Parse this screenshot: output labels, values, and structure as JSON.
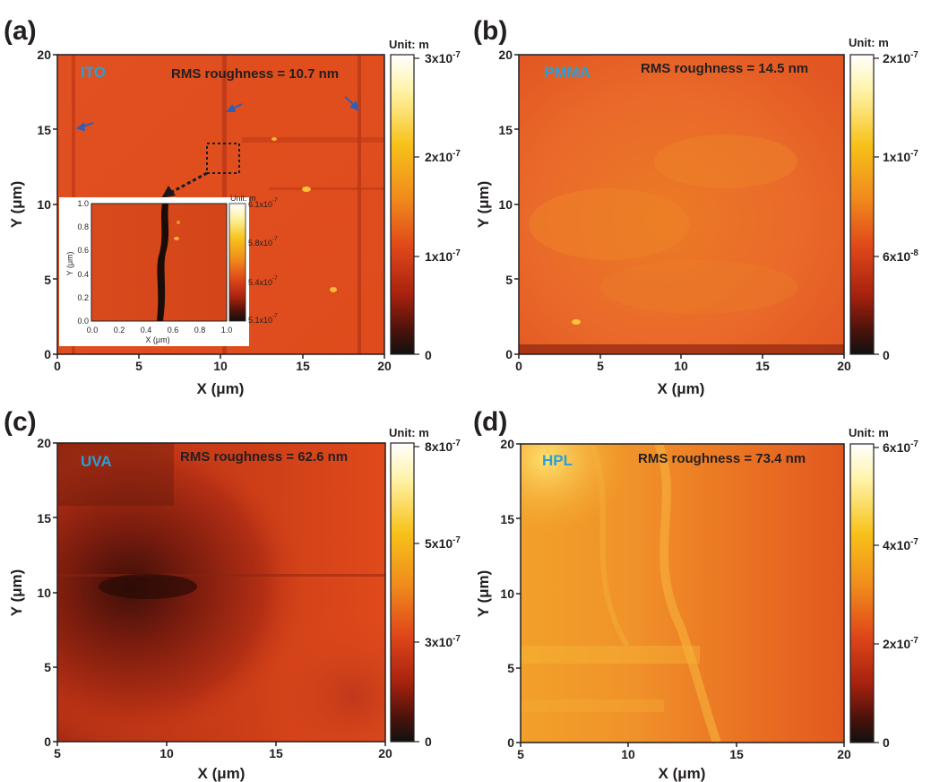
{
  "panels": [
    {
      "id": "a",
      "panel_label": "(a)",
      "sample_label": "ITO",
      "rms_text": "RMS roughness = 10.7 nm",
      "unit_label": "Unit: m",
      "x_axis_label": "X (μm)",
      "y_axis_label": "Y (μm)",
      "x_ticks": [
        "0",
        "5",
        "10",
        "15",
        "20"
      ],
      "y_ticks": [
        "0",
        "5",
        "10",
        "15",
        "20"
      ],
      "colorbar_ticks": [
        "3x10-7",
        "2x10-7",
        "1x10-7",
        "0"
      ],
      "inset": {
        "unit_label": "Unit: m",
        "x_axis_label": "X (μm)",
        "y_axis_label": "Y (μm)",
        "x_ticks": [
          "0.0",
          "0.2",
          "0.4",
          "0.6",
          "0.8",
          "1.0"
        ],
        "y_ticks": [
          "0.0",
          "0.2",
          "0.4",
          "0.6",
          "0.8",
          "1.0"
        ],
        "colorbar_ticks": [
          "6.1x10-7",
          "5.8x10-7",
          "5.4x10-7",
          "5.1x10-7"
        ]
      }
    },
    {
      "id": "b",
      "panel_label": "(b)",
      "sample_label": "PMMA",
      "rms_text": "RMS roughness = 14.5 nm",
      "unit_label": "Unit: m",
      "x_axis_label": "X (μm)",
      "y_axis_label": "Y (μm)",
      "x_ticks": [
        "0",
        "5",
        "10",
        "15",
        "20"
      ],
      "y_ticks": [
        "0",
        "5",
        "10",
        "15",
        "20"
      ],
      "colorbar_ticks": [
        "2x10-7",
        "1x10-7",
        "6x10-8",
        "0"
      ]
    },
    {
      "id": "c",
      "panel_label": "(c)",
      "sample_label": "UVA",
      "rms_text": "RMS roughness = 62.6 nm",
      "unit_label": "Unit: m",
      "x_axis_label": "X (μm)",
      "y_axis_label": "Y (μm)",
      "x_ticks": [
        "5",
        "10",
        "15",
        "20"
      ],
      "y_ticks": [
        "0",
        "5",
        "10",
        "15",
        "20"
      ],
      "colorbar_ticks": [
        "8x10-7",
        "5x10-7",
        "3x10-7",
        "0"
      ]
    },
    {
      "id": "d",
      "panel_label": "(d)",
      "sample_label": "HPL",
      "rms_text": "RMS roughness = 73.4 nm",
      "unit_label": "Unit: m",
      "x_axis_label": "X (μm)",
      "y_axis_label": "Y (μm)",
      "x_ticks": [
        "5",
        "10",
        "15",
        "20"
      ],
      "y_ticks": [
        "0",
        "5",
        "10",
        "15",
        "20"
      ],
      "colorbar_ticks": [
        "6x10-7",
        "4x10-7",
        "2x10-7",
        "0"
      ]
    }
  ],
  "colors": {
    "surface_base": "#e0481a",
    "label_blue": "#2a9fd8",
    "dark": "#1a0a05",
    "axis": "#231f20",
    "colormap": [
      "#ffffff",
      "#fff3a8",
      "#f7c21a",
      "#f08a1c",
      "#e0481a",
      "#a8220f",
      "#4a120a",
      "#111111"
    ]
  },
  "chart_data": [
    {
      "type": "heatmap",
      "title": "(a)",
      "annotation": "ITO",
      "rms_roughness_nm": 10.7,
      "xlabel": "X (μm)",
      "ylabel": "Y (μm)",
      "xlim": [
        0,
        20
      ],
      "ylim": [
        0,
        20
      ],
      "colorbar_label": "Unit: m",
      "colorbar_range": [
        0,
        3.3e-07
      ],
      "colorbar_ticks": [
        0,
        1e-07,
        2e-07,
        3e-07
      ],
      "inset": {
        "xlim": [
          0,
          1
        ],
        "ylim": [
          0,
          1
        ],
        "colorbar_range": [
          5.1e-07,
          6.1e-07
        ]
      }
    },
    {
      "type": "heatmap",
      "title": "(b)",
      "annotation": "PMMA",
      "rms_roughness_nm": 14.5,
      "xlabel": "X (μm)",
      "ylabel": "Y (μm)",
      "xlim": [
        0,
        20
      ],
      "ylim": [
        0,
        20
      ],
      "colorbar_label": "Unit: m",
      "colorbar_range": [
        0,
        2e-07
      ],
      "colorbar_ticks": [
        0,
        6e-08,
        1e-07,
        2e-07
      ]
    },
    {
      "type": "heatmap",
      "title": "(c)",
      "annotation": "UVA",
      "rms_roughness_nm": 62.6,
      "xlabel": "X (μm)",
      "ylabel": "Y (μm)",
      "xlim": [
        5,
        20
      ],
      "ylim": [
        0,
        20
      ],
      "colorbar_label": "Unit: m",
      "colorbar_range": [
        0,
        8e-07
      ],
      "colorbar_ticks": [
        0,
        3e-07,
        5e-07,
        8e-07
      ]
    },
    {
      "type": "heatmap",
      "title": "(d)",
      "annotation": "HPL",
      "rms_roughness_nm": 73.4,
      "xlabel": "X (μm)",
      "ylabel": "Y (μm)",
      "xlim": [
        5,
        20
      ],
      "ylim": [
        0,
        20
      ],
      "colorbar_label": "Unit: m",
      "colorbar_range": [
        0,
        6e-07
      ],
      "colorbar_ticks": [
        0,
        2e-07,
        4e-07,
        6e-07
      ]
    }
  ]
}
